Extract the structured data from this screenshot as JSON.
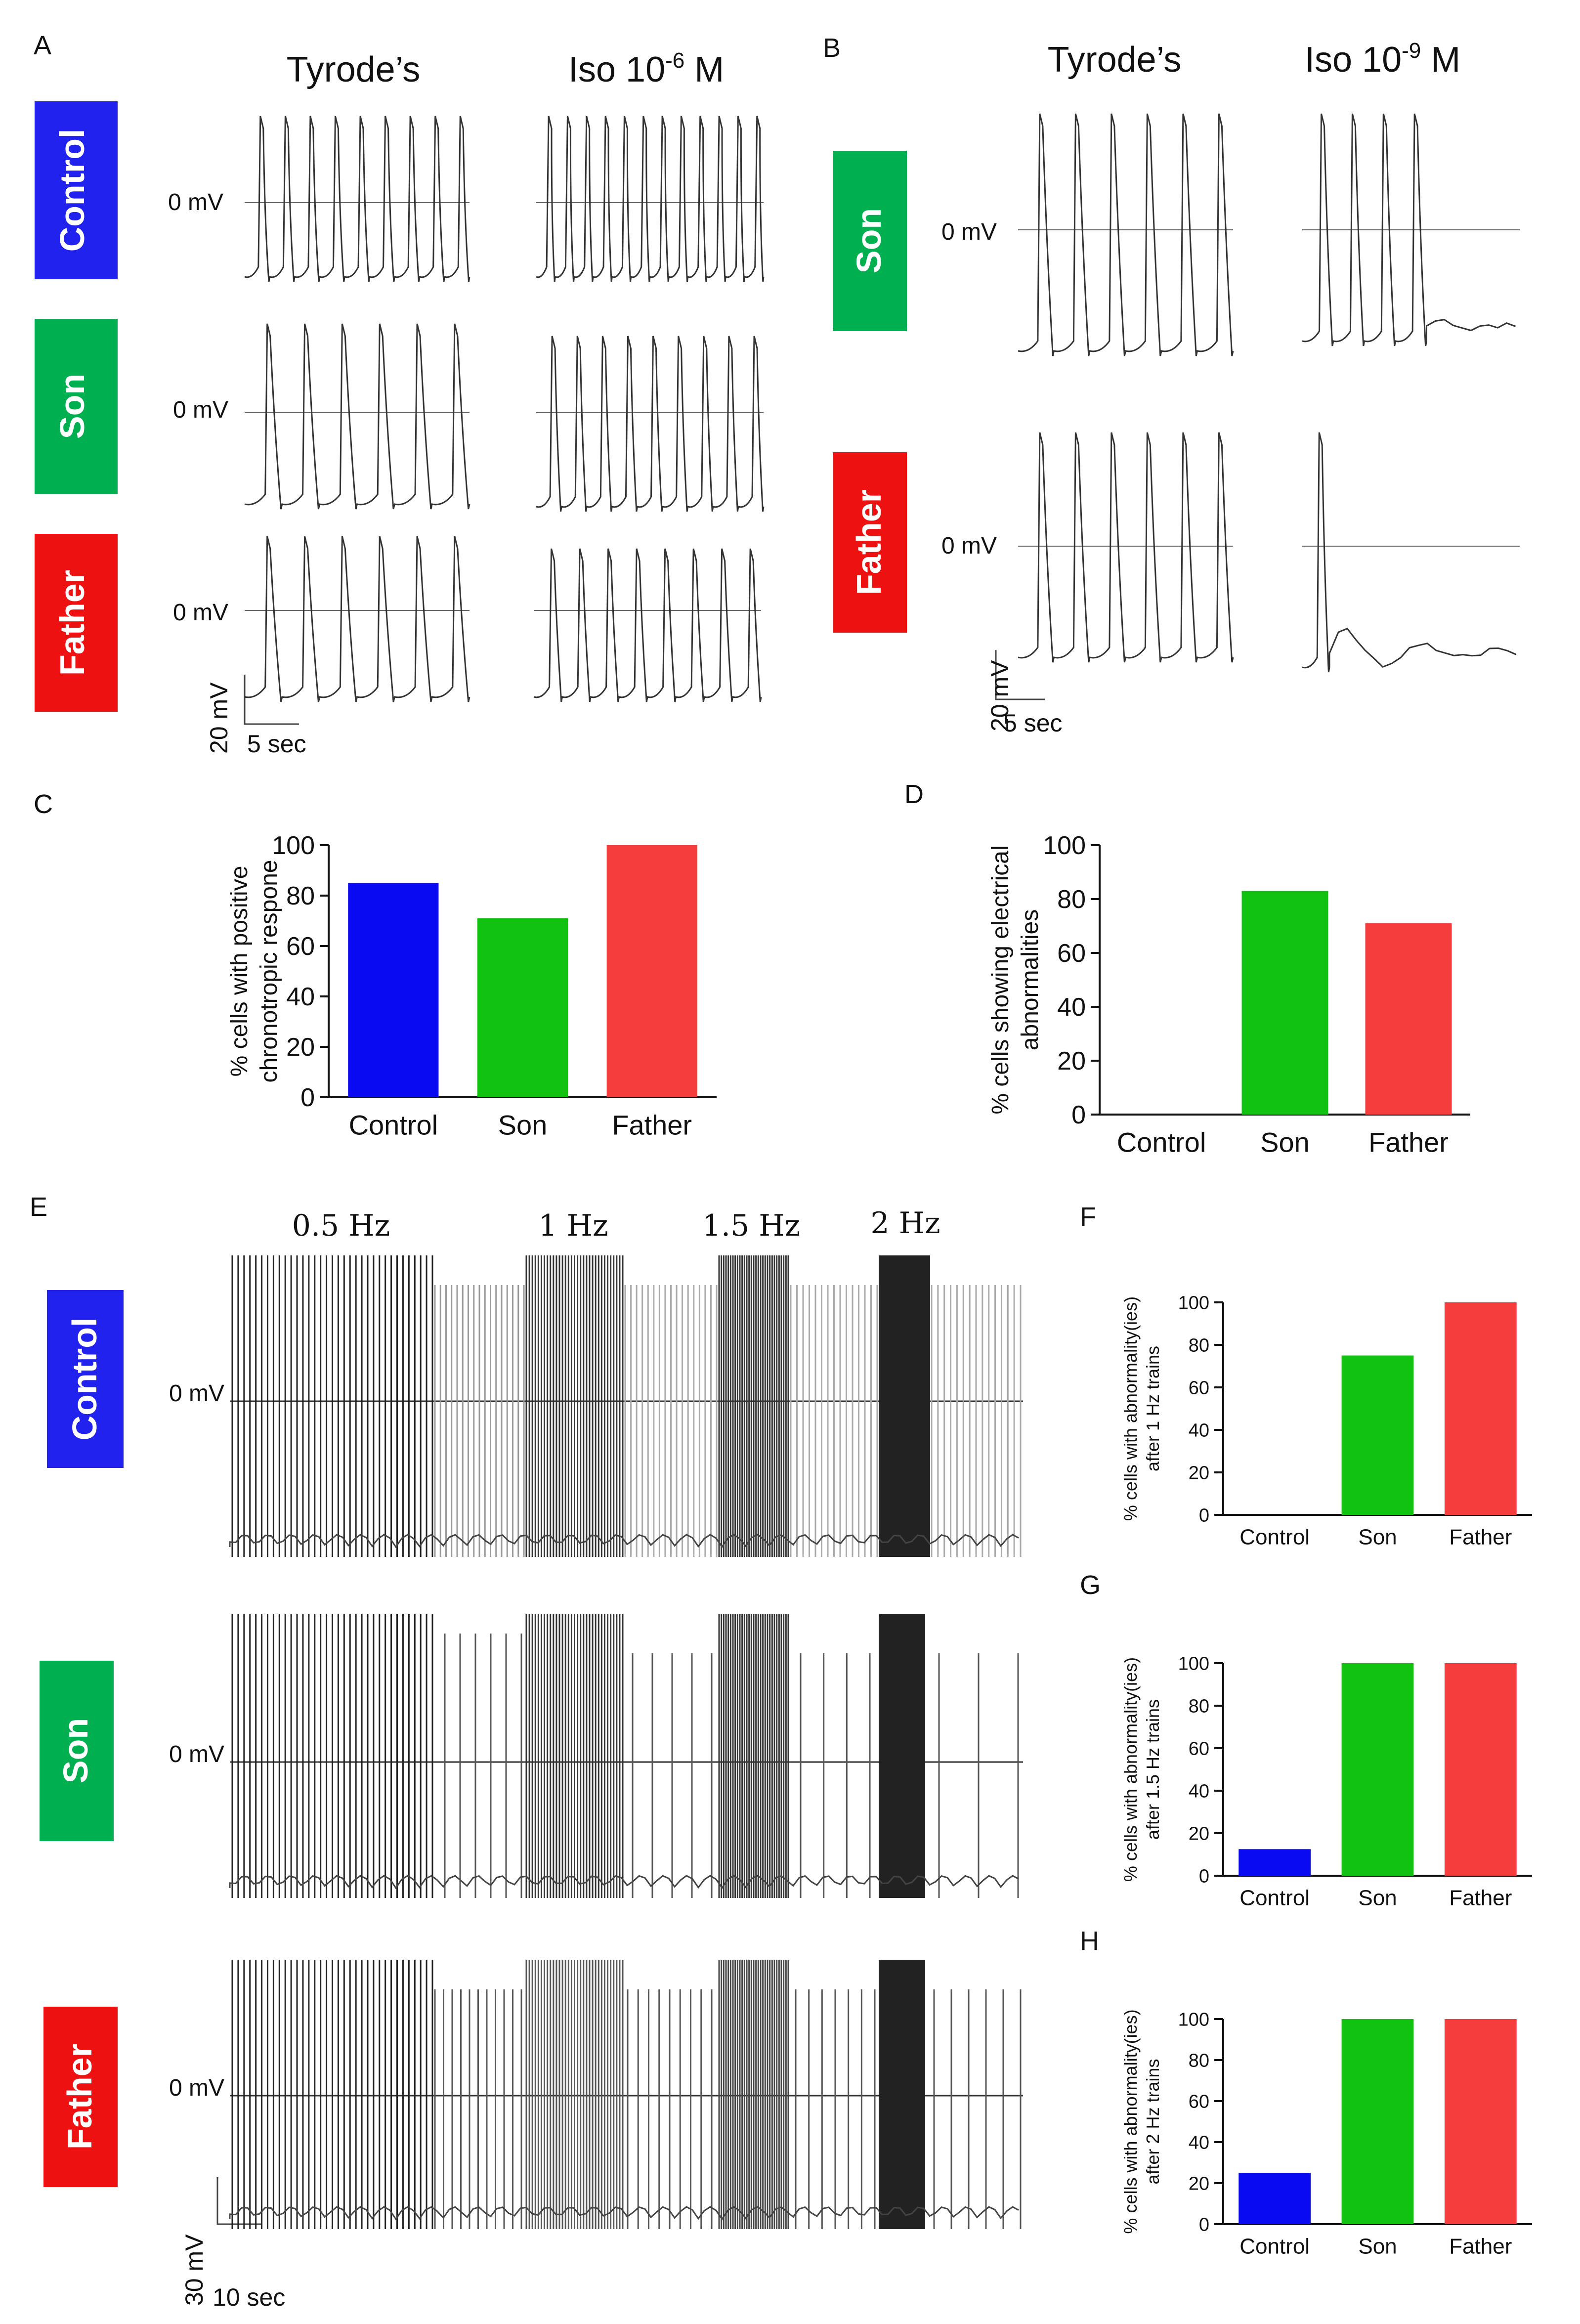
{
  "figure": {
    "panels": {
      "A": "A",
      "B": "B",
      "C": "C",
      "D": "D",
      "E": "E",
      "F": "F",
      "G": "G",
      "H": "H"
    },
    "colors": {
      "control": "#2222ee",
      "son": "#00b050",
      "father": "#ee1111",
      "bar_control": "#0a0af2",
      "bar_son": "#11c211",
      "bar_father": "#f53d3d"
    },
    "row_labels": {
      "control": "Control",
      "son": "Son",
      "father": "Father"
    },
    "zero_label": "0 mV",
    "panel_a": {
      "col_titles": {
        "tyrode": "Tyrode’s",
        "iso_base": "Iso 10",
        "iso_exp": "-6",
        "iso_unit": " M"
      },
      "scale_v": "20 mV",
      "scale_t": "5 sec"
    },
    "panel_b": {
      "col_titles": {
        "tyrode": "Tyrode’s",
        "iso_base": "Iso 10",
        "iso_exp": "-9",
        "iso_unit": " M"
      },
      "scale_v": "20 mV",
      "scale_t": "5 sec"
    },
    "panel_e": {
      "hz_labels": [
        "0.5 Hz",
        "1 Hz",
        "1.5 Hz",
        "2 Hz"
      ],
      "scale_v": "30 mV",
      "scale_t": "10 sec"
    }
  },
  "chart_data": [
    {
      "id": "C",
      "type": "bar",
      "categories": [
        "Control",
        "Son",
        "Father"
      ],
      "values": [
        85,
        71,
        100
      ],
      "ylim": [
        0,
        100
      ],
      "yticks": [
        0,
        20,
        40,
        60,
        80,
        100
      ],
      "ylabel_lines": [
        "% cells with positive",
        "chronotropic respone"
      ],
      "xlabel": "",
      "title": ""
    },
    {
      "id": "D",
      "type": "bar",
      "categories": [
        "Control",
        "Son",
        "Father"
      ],
      "values": [
        0,
        83,
        71
      ],
      "ylim": [
        0,
        100
      ],
      "yticks": [
        0,
        20,
        40,
        60,
        80,
        100
      ],
      "ylabel_lines": [
        "% cells showing electrical",
        "abnormalities"
      ],
      "xlabel": "",
      "title": ""
    },
    {
      "id": "F",
      "type": "bar",
      "categories": [
        "Control",
        "Son",
        "Father"
      ],
      "values": [
        0,
        75,
        100
      ],
      "ylim": [
        0,
        100
      ],
      "yticks": [
        0,
        20,
        40,
        60,
        80,
        100
      ],
      "ylabel_lines": [
        "% cells with abnormality(ies)",
        "after 1 Hz trains"
      ],
      "xlabel": "",
      "title": ""
    },
    {
      "id": "G",
      "type": "bar",
      "categories": [
        "Control",
        "Son",
        "Father"
      ],
      "values": [
        12.5,
        100,
        100
      ],
      "ylim": [
        0,
        100
      ],
      "yticks": [
        0,
        20,
        40,
        60,
        80,
        100
      ],
      "ylabel_lines": [
        "% cells with abnormality(ies)",
        "after 1.5 Hz trains"
      ],
      "xlabel": "",
      "title": ""
    },
    {
      "id": "H",
      "type": "bar",
      "categories": [
        "Control",
        "Son",
        "Father"
      ],
      "values": [
        25,
        100,
        100
      ],
      "ylim": [
        0,
        100
      ],
      "yticks": [
        0,
        20,
        40,
        60,
        80,
        100
      ],
      "ylabel_lines": [
        "% cells with abnormality(ies)",
        "after 2 Hz trains"
      ],
      "xlabel": "",
      "title": ""
    }
  ]
}
